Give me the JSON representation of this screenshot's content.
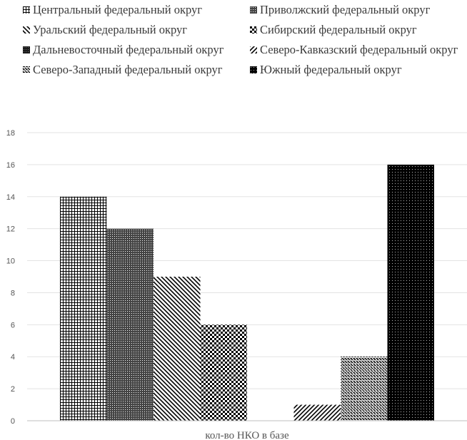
{
  "chart_data": {
    "type": "bar",
    "categories": [
      "кол-во НКО в базе"
    ],
    "series": [
      {
        "name": "Центральный федеральный округ",
        "values": [
          14
        ],
        "pattern": "grid"
      },
      {
        "name": "Приволжский федеральный округ",
        "values": [
          12
        ],
        "pattern": "dense-grid"
      },
      {
        "name": "Уральский федеральный округ",
        "values": [
          9
        ],
        "pattern": "diag-down"
      },
      {
        "name": "Сибирский федеральный округ",
        "values": [
          6
        ],
        "pattern": "checker"
      },
      {
        "name": "Дальневосточный федеральный округ",
        "values": [
          0
        ],
        "pattern": "solid-dark"
      },
      {
        "name": "Северо-Кавказский федеральный округ",
        "values": [
          1
        ],
        "pattern": "diag-up"
      },
      {
        "name": "Северо-Западный федеральный округ",
        "values": [
          4
        ],
        "pattern": "dotted-grid"
      },
      {
        "name": "Южный федеральный округ",
        "values": [
          16
        ],
        "pattern": "dark-dots"
      }
    ],
    "yticks": [
      "0",
      "2",
      "4",
      "6",
      "8",
      "10",
      "12",
      "14",
      "16",
      "18"
    ],
    "ylim": [
      0,
      18
    ],
    "grid": true,
    "legend": "top",
    "title": "",
    "xlabel": "",
    "ylabel": ""
  }
}
